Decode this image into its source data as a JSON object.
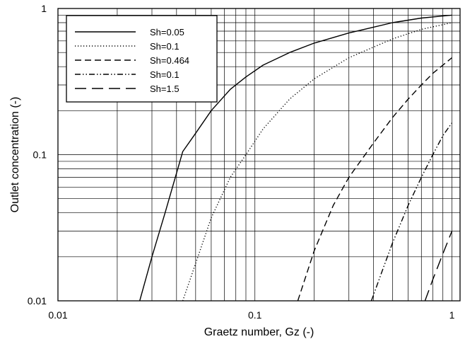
{
  "chart_data": {
    "type": "line",
    "xlabel": "Graetz number, Gz (-)",
    "ylabel": "Outlet concentration (-)",
    "xscale": "log",
    "yscale": "log",
    "xlim": [
      0.01,
      1.1
    ],
    "ylim": [
      0.01,
      1
    ],
    "grid": "major and minor, both axes",
    "legend_position": "top-left",
    "x_tick_labels": [
      "0.01",
      "0.1",
      "1"
    ],
    "y_tick_labels": [
      "0.01",
      "0.1",
      "1"
    ],
    "series": [
      {
        "name": "Sh=0.05",
        "style": "solid",
        "points": [
          [
            0.026,
            0.01
          ],
          [
            0.03,
            0.02
          ],
          [
            0.035,
            0.04
          ],
          [
            0.043,
            0.105
          ],
          [
            0.05,
            0.14
          ],
          [
            0.06,
            0.2
          ],
          [
            0.075,
            0.28
          ],
          [
            0.09,
            0.34
          ],
          [
            0.11,
            0.41
          ],
          [
            0.15,
            0.5
          ],
          [
            0.2,
            0.58
          ],
          [
            0.3,
            0.68
          ],
          [
            0.5,
            0.8
          ],
          [
            0.7,
            0.86
          ],
          [
            1.0,
            0.9
          ]
        ]
      },
      {
        "name": "Sh=0.1",
        "style": "dotted",
        "points": [
          [
            0.043,
            0.01
          ],
          [
            0.05,
            0.018
          ],
          [
            0.06,
            0.037
          ],
          [
            0.075,
            0.07
          ],
          [
            0.09,
            0.1
          ],
          [
            0.11,
            0.15
          ],
          [
            0.15,
            0.24
          ],
          [
            0.2,
            0.33
          ],
          [
            0.3,
            0.46
          ],
          [
            0.5,
            0.62
          ],
          [
            0.7,
            0.72
          ],
          [
            1.0,
            0.8
          ]
        ]
      },
      {
        "name": "Sh=0.464",
        "style": "dashed",
        "points": [
          [
            0.165,
            0.01
          ],
          [
            0.2,
            0.022
          ],
          [
            0.25,
            0.045
          ],
          [
            0.3,
            0.07
          ],
          [
            0.4,
            0.12
          ],
          [
            0.5,
            0.18
          ],
          [
            0.6,
            0.24
          ],
          [
            0.7,
            0.3
          ],
          [
            0.8,
            0.36
          ],
          [
            0.9,
            0.41
          ],
          [
            1.0,
            0.46
          ]
        ]
      },
      {
        "name": "Sh=0.1",
        "style": "dash-dot-dot",
        "points": [
          [
            0.39,
            0.01
          ],
          [
            0.45,
            0.017
          ],
          [
            0.5,
            0.025
          ],
          [
            0.6,
            0.045
          ],
          [
            0.7,
            0.07
          ],
          [
            0.8,
            0.1
          ],
          [
            0.9,
            0.135
          ],
          [
            1.0,
            0.165
          ]
        ]
      },
      {
        "name": "Sh=1.5",
        "style": "long-dash",
        "points": [
          [
            0.73,
            0.01
          ],
          [
            0.8,
            0.014
          ],
          [
            0.9,
            0.021
          ],
          [
            1.0,
            0.03
          ]
        ]
      }
    ]
  }
}
